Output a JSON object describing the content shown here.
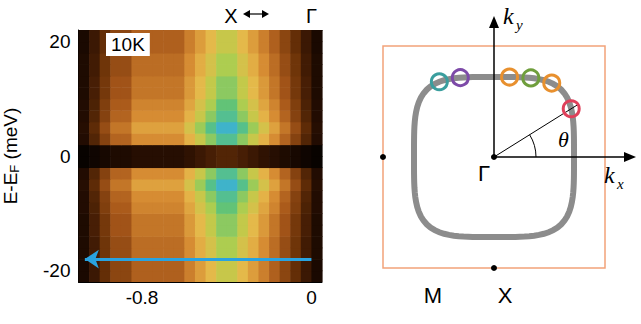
{
  "chart_data": {
    "type": "heatmap",
    "ylabel": {
      "text": "E-E",
      "subscript": "F",
      "after": " (meV)"
    },
    "xlim": [
      -1.1,
      0.05
    ],
    "xticks": [
      -0.8,
      0
    ],
    "x2ticks": [
      {
        "value": -0.38,
        "label": "X"
      },
      {
        "value": 0,
        "label": "Γ"
      }
    ],
    "ylim": [
      -22,
      22
    ],
    "yticks": [
      -20,
      0,
      20
    ],
    "grid": false,
    "x_bins": [
      -1.1,
      -1.05,
      -1,
      -0.95,
      -0.9,
      -0.85,
      -0.8,
      -0.75,
      -0.7,
      -0.65,
      -0.6,
      -0.55,
      -0.5,
      -0.45,
      -0.4,
      -0.35,
      -0.3,
      -0.25,
      -0.2,
      -0.15,
      -0.1,
      -0.05,
      0,
      0.05
    ],
    "y_bins": [
      -22,
      -20,
      -18,
      -16,
      -14,
      -12,
      -10,
      -8,
      -6,
      -4,
      -2,
      0,
      2,
      4,
      6,
      8,
      10,
      12,
      14,
      16,
      18,
      20,
      22
    ],
    "zlim": [
      0,
      10
    ],
    "cells": [
      [
        0.7,
        1.4,
        2.1,
        2.8,
        2.8,
        3.5,
        3.5,
        3.5,
        3.5,
        3.5,
        4.2,
        4.9,
        5.6,
        6.3,
        6.3,
        5.6,
        4.9,
        4.2,
        3.5,
        2.8,
        2.1,
        1.4,
        0.7
      ],
      [
        0.7,
        1.4,
        2.1,
        2.8,
        2.8,
        3.5,
        3.5,
        3.5,
        3.5,
        3.5,
        4.2,
        4.9,
        5.6,
        6.3,
        6.3,
        5.6,
        4.9,
        4.2,
        3.5,
        2.8,
        2.1,
        1.4,
        0.7
      ],
      [
        0.8,
        1.5,
        2.3,
        3,
        3,
        3.8,
        3.8,
        3.8,
        3.8,
        3.8,
        4.5,
        5.3,
        6,
        6.8,
        6.8,
        6,
        5.3,
        4.5,
        3.8,
        3,
        2.3,
        1.5,
        0.8
      ],
      [
        0.8,
        1.5,
        2.3,
        3,
        3,
        3.8,
        3.8,
        3.8,
        3.8,
        3.8,
        4.5,
        5.3,
        6,
        6.8,
        6.8,
        6,
        5.3,
        4.5,
        3.8,
        3,
        2.3,
        1.5,
        0.8
      ],
      [
        0.8,
        1.6,
        2.4,
        3.2,
        3.2,
        4,
        4,
        4,
        4,
        4,
        4.8,
        5.6,
        6.4,
        7.2,
        7.2,
        6.4,
        5.6,
        4.8,
        4,
        3.2,
        2.4,
        1.6,
        0.8
      ],
      [
        0.8,
        1.6,
        2.4,
        3.2,
        3.2,
        4,
        4,
        4,
        4,
        4,
        4.8,
        5.6,
        6.4,
        7.2,
        7.2,
        6.4,
        5.6,
        4.8,
        4,
        3.2,
        2.4,
        1.6,
        0.8
      ],
      [
        0.9,
        1.7,
        2.6,
        3.4,
        3.4,
        4.3,
        4.3,
        4.3,
        4.3,
        4.3,
        5.1,
        6,
        6.8,
        7.7,
        7.7,
        6.8,
        6,
        5.1,
        4.3,
        3.4,
        2.6,
        1.7,
        0.9
      ],
      [
        0.9,
        1.8,
        2.7,
        3.6,
        3.6,
        4.5,
        4.5,
        4.5,
        4.5,
        4.5,
        5.4,
        6.3,
        7.2,
        8.1,
        8.1,
        7.2,
        6.3,
        5.4,
        4.5,
        3.6,
        2.7,
        1.8,
        0.9
      ],
      [
        1,
        2,
        3,
        4,
        4,
        5,
        5,
        5,
        5,
        5,
        6,
        7,
        8,
        9,
        9,
        8,
        7,
        6,
        5,
        4,
        3,
        2,
        1
      ],
      [
        0.9,
        1.8,
        2.7,
        3.6,
        3.6,
        4.5,
        4.5,
        4.5,
        4.5,
        4.5,
        5.4,
        6.3,
        7.2,
        8.1,
        8.1,
        7.2,
        6.3,
        5.4,
        4.5,
        3.6,
        2.7,
        1.8,
        0.9
      ],
      [
        0.2,
        0.4,
        0.6,
        0.8,
        0.8,
        1,
        1,
        1,
        1,
        1,
        1.2,
        1.4,
        1.6,
        1.8,
        1.8,
        1.6,
        1.4,
        1.2,
        1,
        0.8,
        0.6,
        0.4,
        0.2
      ],
      [
        0.2,
        0.4,
        0.6,
        0.8,
        0.8,
        1,
        1,
        1,
        1,
        1,
        1.2,
        1.4,
        1.6,
        1.8,
        1.8,
        1.6,
        1.4,
        1.2,
        1,
        0.8,
        0.6,
        0.4,
        0.2
      ],
      [
        0.9,
        1.8,
        2.7,
        3.6,
        3.6,
        4.5,
        4.5,
        4.5,
        4.5,
        4.5,
        5.4,
        6.3,
        7.2,
        8.1,
        8.1,
        7.2,
        6.3,
        5.4,
        4.5,
        3.6,
        2.7,
        1.8,
        0.9
      ],
      [
        1,
        2,
        3,
        4,
        4,
        5,
        5,
        5,
        5,
        5,
        6,
        7,
        8,
        9,
        9,
        8,
        7,
        6,
        5,
        4,
        3,
        2,
        1
      ],
      [
        0.9,
        1.8,
        2.7,
        3.6,
        3.6,
        4.5,
        4.5,
        4.5,
        4.5,
        4.5,
        5.4,
        6.3,
        7.2,
        8.1,
        8.1,
        7.2,
        6.3,
        5.4,
        4.5,
        3.6,
        2.7,
        1.8,
        0.9
      ],
      [
        0.9,
        1.7,
        2.6,
        3.4,
        3.4,
        4.3,
        4.3,
        4.3,
        4.3,
        4.3,
        5.1,
        6,
        6.8,
        7.7,
        7.7,
        6.8,
        6,
        5.1,
        4.3,
        3.4,
        2.6,
        1.7,
        0.9
      ],
      [
        0.8,
        1.6,
        2.4,
        3.2,
        3.2,
        4,
        4,
        4,
        4,
        4,
        4.8,
        5.6,
        6.4,
        7.2,
        7.2,
        6.4,
        5.6,
        4.8,
        4,
        3.2,
        2.4,
        1.6,
        0.8
      ],
      [
        0.8,
        1.6,
        2.4,
        3.2,
        3.2,
        4,
        4,
        4,
        4,
        4,
        4.8,
        5.6,
        6.4,
        7.2,
        7.2,
        6.4,
        5.6,
        4.8,
        4,
        3.2,
        2.4,
        1.6,
        0.8
      ],
      [
        0.8,
        1.5,
        2.3,
        3,
        3,
        3.8,
        3.8,
        3.8,
        3.8,
        3.8,
        4.5,
        5.3,
        6,
        6.8,
        6.8,
        6,
        5.3,
        4.5,
        3.8,
        3,
        2.3,
        1.5,
        0.8
      ],
      [
        0.8,
        1.5,
        2.3,
        3,
        3,
        3.8,
        3.8,
        3.8,
        3.8,
        3.8,
        4.5,
        5.3,
        6,
        6.8,
        6.8,
        6,
        5.3,
        4.5,
        3.8,
        3,
        2.3,
        1.5,
        0.8
      ],
      [
        0.7,
        1.4,
        2.1,
        2.8,
        2.8,
        3.5,
        3.5,
        3.5,
        3.5,
        3.5,
        4.2,
        4.9,
        5.6,
        6.3,
        6.3,
        5.6,
        4.9,
        4.2,
        3.5,
        2.8,
        2.1,
        1.4,
        0.7
      ],
      [
        0.7,
        1.4,
        2.1,
        2.8,
        2.8,
        3.5,
        3.5,
        3.5,
        3.5,
        3.5,
        4.2,
        4.9,
        5.6,
        6.3,
        6.3,
        5.6,
        4.9,
        4.2,
        3.5,
        2.8,
        2.1,
        1.4,
        0.7
      ]
    ],
    "annotations": [
      {
        "text": "10K"
      }
    ],
    "arrow": {
      "y": -18,
      "x": [
        0,
        -1.07
      ],
      "color": "#29a3e0"
    }
  },
  "diagram": {
    "axis_labels": [
      {
        "text": "k",
        "subscript": "y"
      },
      {
        "text": "k",
        "subscript": "x"
      }
    ],
    "center_label": "Γ",
    "edge_label": "X",
    "corner_label": "M",
    "angle_label": "θ",
    "points": [
      {
        "theta": 126,
        "color": "#3a9e9e"
      },
      {
        "theta": 113,
        "color": "#7d4aa8"
      },
      {
        "theta": 79,
        "color": "#e8902e"
      },
      {
        "theta": 65,
        "color": "#6f9e3c"
      },
      {
        "theta": 52,
        "color": "#e8902e"
      },
      {
        "theta": 32,
        "color": "#e0405a"
      }
    ]
  }
}
